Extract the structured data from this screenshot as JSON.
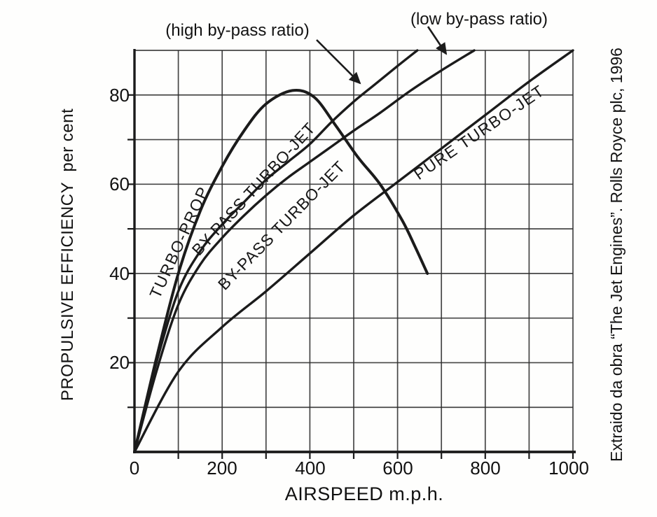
{
  "figure": {
    "caption_right": "Extraido da obra “The Jet Engines”. Rolls Royce plc, 1996"
  },
  "annotations": {
    "high_bypass": "(high by-pass ratio)",
    "low_bypass": "(low by-pass ratio)"
  },
  "axes": {
    "x_title": "AIRSPEED m.p.h.",
    "y_title": "PROPULSIVE EFFICIENCY  per cent",
    "x_ticks": [
      "0",
      "200",
      "400",
      "600",
      "800",
      "1000"
    ],
    "y_ticks": [
      "20",
      "40",
      "60",
      "80"
    ]
  },
  "curve_labels": {
    "turbo_prop": "TURBO-PROP",
    "bypass_high": "BY-PASS TURBO-JET",
    "bypass_low": "BY-PASS TURBO-JET",
    "pure_turbojet": "PURE TURBO-JET"
  },
  "colors": {
    "ink": "#1b1b1b",
    "grid": "#2d2d2d",
    "paper": "#fefefd"
  },
  "chart_data": {
    "type": "line",
    "title": "",
    "xlabel": "AIRSPEED m.p.h.",
    "ylabel": "PROPULSIVE EFFICIENCY per cent",
    "xlim": [
      0,
      1000
    ],
    "ylim": [
      0,
      90
    ],
    "x_tick_values": [
      0,
      200,
      400,
      600,
      800,
      1000
    ],
    "y_tick_values": [
      20,
      40,
      60,
      80
    ],
    "grid": "on, every 100 mph and every 10 per cent",
    "legend_position": "labels drawn along curves",
    "series": [
      {
        "name": "TURBO-PROP",
        "points": [
          [
            0,
            0
          ],
          [
            50,
            21
          ],
          [
            100,
            40
          ],
          [
            150,
            54
          ],
          [
            200,
            64
          ],
          [
            250,
            72
          ],
          [
            300,
            78
          ],
          [
            360,
            81
          ],
          [
            410,
            79.5
          ],
          [
            460,
            73
          ],
          [
            510,
            66
          ],
          [
            560,
            60
          ],
          [
            610,
            52
          ],
          [
            640,
            46
          ],
          [
            668,
            40
          ]
        ]
      },
      {
        "name": "BY-PASS TURBO-JET (high by-pass ratio)",
        "points": [
          [
            0,
            0
          ],
          [
            50,
            20
          ],
          [
            100,
            36
          ],
          [
            150,
            45
          ],
          [
            200,
            51
          ],
          [
            250,
            56
          ],
          [
            300,
            61
          ],
          [
            350,
            65
          ],
          [
            400,
            69
          ],
          [
            450,
            74
          ],
          [
            500,
            78.5
          ],
          [
            550,
            82.5
          ],
          [
            600,
            86.5
          ],
          [
            645,
            90
          ]
        ]
      },
      {
        "name": "BY-PASS TURBO-JET (low by-pass ratio)",
        "points": [
          [
            0,
            0
          ],
          [
            50,
            18
          ],
          [
            100,
            33
          ],
          [
            150,
            42
          ],
          [
            200,
            48
          ],
          [
            250,
            53
          ],
          [
            300,
            57.5
          ],
          [
            350,
            61.5
          ],
          [
            400,
            65
          ],
          [
            450,
            68.5
          ],
          [
            500,
            72
          ],
          [
            560,
            76
          ],
          [
            630,
            81
          ],
          [
            700,
            85.5
          ],
          [
            775,
            90
          ]
        ]
      },
      {
        "name": "PURE TURBO-JET",
        "points": [
          [
            0,
            0
          ],
          [
            100,
            18
          ],
          [
            200,
            28
          ],
          [
            300,
            36
          ],
          [
            400,
            44.5
          ],
          [
            500,
            53
          ],
          [
            600,
            60.5
          ],
          [
            700,
            68
          ],
          [
            800,
            75.5
          ],
          [
            900,
            83
          ],
          [
            1000,
            90
          ]
        ]
      }
    ],
    "annotations": [
      {
        "text": "(high by-pass ratio)",
        "points_to": "BY-PASS TURBO-JET (high by-pass ratio)"
      },
      {
        "text": "(low by-pass ratio)",
        "points_to": "BY-PASS TURBO-JET (low by-pass ratio)"
      }
    ]
  }
}
